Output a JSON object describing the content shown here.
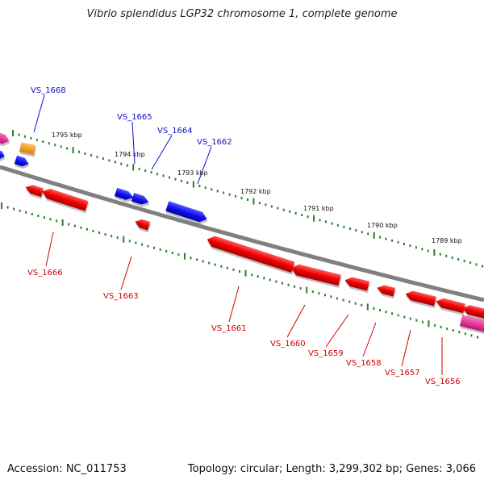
{
  "title": "Vibrio splendidus LGP32 chromosome 1, complete genome",
  "footer": {
    "accession": "Accession: NC_011753",
    "summary": "Topology: circular; Length: 3,299,302 bp; Genes: 3,066"
  },
  "colors": {
    "backbone": "#808080",
    "tick": "#2a7d2a",
    "forward_gene": "#1010e0",
    "reverse_gene": "#e00000",
    "forward_label": "#1010c0",
    "reverse_label": "#d00000",
    "rna_orange": "#f59a1c",
    "rna_pink": "#e2238c"
  },
  "scale_labels": [
    "1795 kbp",
    "1794 kbp",
    "1793 kbp",
    "1792 kbp",
    "1791 kbp",
    "1790 kbp",
    "1789 kbp"
  ],
  "forward_gene_labels": [
    "VS_1668",
    "VS_1665",
    "VS_1664",
    "VS_1662"
  ],
  "reverse_gene_labels": [
    "VS_1666",
    "VS_1663",
    "VS_1661",
    "VS_1660",
    "VS_1659",
    "VS_1658",
    "VS_1657",
    "VS_1656"
  ]
}
